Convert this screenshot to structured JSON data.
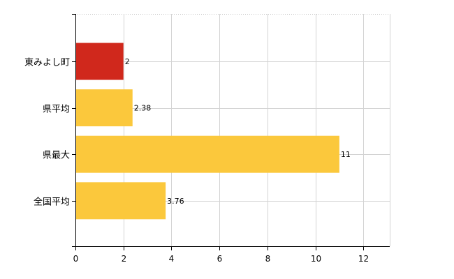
{
  "chart_data": {
    "type": "bar",
    "orientation": "horizontal",
    "categories": [
      "東みよし町",
      "県平均",
      "県最大",
      "全国平均"
    ],
    "values": [
      2,
      2.38,
      11,
      3.76
    ],
    "data_labels": [
      "2",
      "2.38",
      "11",
      "3.76"
    ],
    "bar_colors": [
      "#d0281c",
      "#fbc83c",
      "#fbc83c",
      "#fbc83c"
    ],
    "x_ticks": [
      0,
      2,
      4,
      6,
      8,
      10,
      12
    ],
    "x_tick_labels": [
      "0",
      "2",
      "4",
      "6",
      "8",
      "10",
      "12"
    ],
    "xlim": [
      0,
      13.1
    ],
    "grid": true,
    "legend": "none",
    "title": "",
    "xlabel": "",
    "ylabel": ""
  }
}
